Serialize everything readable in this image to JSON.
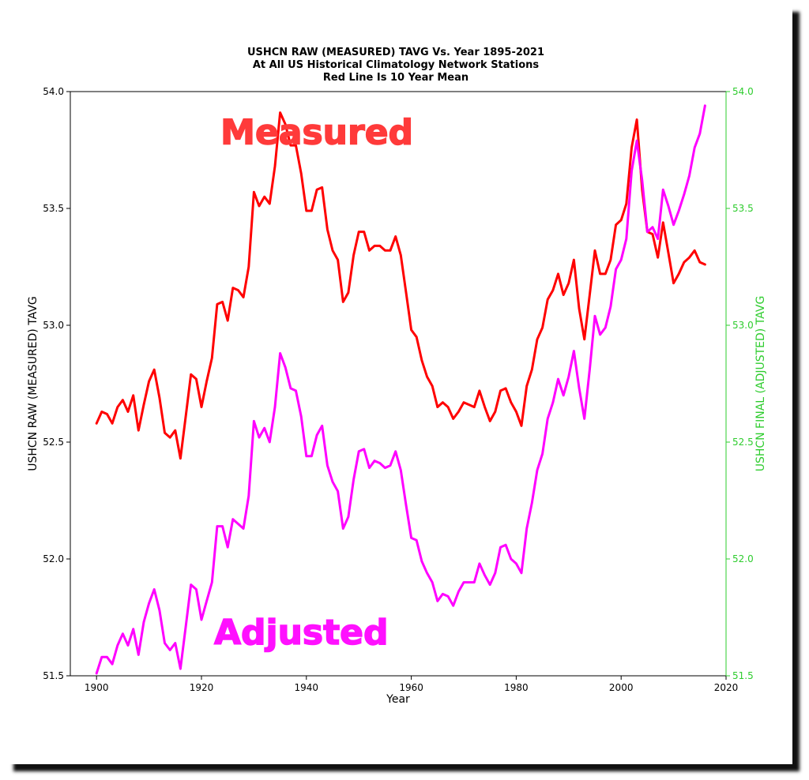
{
  "chart_data": {
    "type": "line",
    "title_lines": [
      "USHCN RAW (MEASURED) TAVG Vs. Year 1895-2021",
      "At All US Historical Climatology Network Stations",
      "Red Line Is 10 Year Mean"
    ],
    "xlabel": "Year",
    "ylabel_left": "USHCN RAW (MEASURED) TAVG",
    "ylabel_right": "USHCN FINAL (ADJUSTED) TAVG",
    "xlim": [
      1895,
      2020
    ],
    "ylim_left": [
      51.5,
      54.0
    ],
    "ylim_right": [
      51.5,
      54.0
    ],
    "x_ticks": [
      "1900",
      "1920",
      "1940",
      "1960",
      "1980",
      "2000",
      "2020"
    ],
    "y_ticks_left": [
      "51.5",
      "52.0",
      "52.5",
      "53.0",
      "53.5",
      "54.0"
    ],
    "y_ticks_right": [
      "51.5",
      "52.0",
      "52.5",
      "53.0",
      "53.5",
      "54.0"
    ],
    "grid": false,
    "annotations": [
      {
        "text": "Measured",
        "color": "#ff3a3a",
        "near_year": 1942,
        "near_value": 53.83
      },
      {
        "text": "Adjusted",
        "color": "#ff10ff",
        "near_year": 1939,
        "near_value": 51.69
      }
    ],
    "colors": {
      "measured": "#ff0000",
      "adjusted": "#ff00ff",
      "right_axis": "#2ecc2e",
      "text": "#000000"
    },
    "series": [
      {
        "name": "Measured",
        "axis": "left",
        "x": [
          1900,
          1901,
          1902,
          1903,
          1904,
          1905,
          1906,
          1907,
          1908,
          1909,
          1910,
          1911,
          1912,
          1913,
          1914,
          1915,
          1916,
          1917,
          1918,
          1919,
          1920,
          1921,
          1922,
          1923,
          1924,
          1925,
          1926,
          1927,
          1928,
          1929,
          1930,
          1931,
          1932,
          1933,
          1934,
          1935,
          1936,
          1937,
          1938,
          1939,
          1940,
          1941,
          1942,
          1943,
          1944,
          1945,
          1946,
          1947,
          1948,
          1949,
          1950,
          1951,
          1952,
          1953,
          1954,
          1955,
          1956,
          1957,
          1958,
          1959,
          1960,
          1961,
          1962,
          1963,
          1964,
          1965,
          1966,
          1967,
          1968,
          1969,
          1970,
          1971,
          1972,
          1973,
          1974,
          1975,
          1976,
          1977,
          1978,
          1979,
          1980,
          1981,
          1982,
          1983,
          1984,
          1985,
          1986,
          1987,
          1988,
          1989,
          1990,
          1991,
          1992,
          1993,
          1994,
          1995,
          1996,
          1997,
          1998,
          1999,
          2000,
          2001,
          2002,
          2003,
          2004,
          2005,
          2006,
          2007,
          2008,
          2009,
          2010,
          2011,
          2012,
          2013,
          2014,
          2015,
          2016
        ],
        "values": [
          52.58,
          52.63,
          52.62,
          52.58,
          52.65,
          52.68,
          52.63,
          52.7,
          52.55,
          52.66,
          52.76,
          52.81,
          52.69,
          52.54,
          52.52,
          52.55,
          52.43,
          52.61,
          52.79,
          52.77,
          52.65,
          52.76,
          52.86,
          53.09,
          53.1,
          53.02,
          53.16,
          53.15,
          53.12,
          53.25,
          53.57,
          53.51,
          53.55,
          53.52,
          53.68,
          53.91,
          53.86,
          53.77,
          53.77,
          53.65,
          53.49,
          53.49,
          53.58,
          53.59,
          53.41,
          53.32,
          53.28,
          53.1,
          53.14,
          53.3,
          53.4,
          53.4,
          53.32,
          53.34,
          53.34,
          53.32,
          53.32,
          53.38,
          53.3,
          53.14,
          52.98,
          52.95,
          52.85,
          52.78,
          52.74,
          52.65,
          52.67,
          52.65,
          52.6,
          52.63,
          52.67,
          52.66,
          52.65,
          52.72,
          52.65,
          52.59,
          52.63,
          52.72,
          52.73,
          52.67,
          52.63,
          52.57,
          52.74,
          52.81,
          52.94,
          52.99,
          53.11,
          53.15,
          53.22,
          53.13,
          53.18,
          53.28,
          53.07,
          52.94,
          53.13,
          53.32,
          53.22,
          53.22,
          53.28,
          53.43,
          53.45,
          53.52,
          53.76,
          53.88,
          53.58,
          53.4,
          53.39,
          53.29,
          53.44,
          53.31,
          53.18,
          53.22,
          53.27,
          53.29,
          53.32,
          53.27,
          53.26
        ]
      },
      {
        "name": "Adjusted",
        "axis": "right",
        "x": [
          1900,
          1901,
          1902,
          1903,
          1904,
          1905,
          1906,
          1907,
          1908,
          1909,
          1910,
          1911,
          1912,
          1913,
          1914,
          1915,
          1916,
          1917,
          1918,
          1919,
          1920,
          1921,
          1922,
          1923,
          1924,
          1925,
          1926,
          1927,
          1928,
          1929,
          1930,
          1931,
          1932,
          1933,
          1934,
          1935,
          1936,
          1937,
          1938,
          1939,
          1940,
          1941,
          1942,
          1943,
          1944,
          1945,
          1946,
          1947,
          1948,
          1949,
          1950,
          1951,
          1952,
          1953,
          1954,
          1955,
          1956,
          1957,
          1958,
          1959,
          1960,
          1961,
          1962,
          1963,
          1964,
          1965,
          1966,
          1967,
          1968,
          1969,
          1970,
          1971,
          1972,
          1973,
          1974,
          1975,
          1976,
          1977,
          1978,
          1979,
          1980,
          1981,
          1982,
          1983,
          1984,
          1985,
          1986,
          1987,
          1988,
          1989,
          1990,
          1991,
          1992,
          1993,
          1994,
          1995,
          1996,
          1997,
          1998,
          1999,
          2000,
          2001,
          2002,
          2003,
          2004,
          2005,
          2006,
          2007,
          2008,
          2009,
          2010,
          2011,
          2012,
          2013,
          2014,
          2015,
          2016
        ],
        "values": [
          51.51,
          51.58,
          51.58,
          51.55,
          51.63,
          51.68,
          51.63,
          51.7,
          51.59,
          51.73,
          51.81,
          51.87,
          51.78,
          51.64,
          51.61,
          51.64,
          51.53,
          51.71,
          51.89,
          51.87,
          51.74,
          51.82,
          51.9,
          52.14,
          52.14,
          52.05,
          52.17,
          52.15,
          52.13,
          52.27,
          52.59,
          52.52,
          52.56,
          52.5,
          52.65,
          52.88,
          52.82,
          52.73,
          52.72,
          52.61,
          52.44,
          52.44,
          52.53,
          52.57,
          52.4,
          52.33,
          52.29,
          52.13,
          52.18,
          52.34,
          52.46,
          52.47,
          52.39,
          52.42,
          52.41,
          52.39,
          52.4,
          52.46,
          52.38,
          52.23,
          52.09,
          52.08,
          51.99,
          51.94,
          51.9,
          51.82,
          51.85,
          51.84,
          51.8,
          51.86,
          51.9,
          51.9,
          51.9,
          51.98,
          51.93,
          51.89,
          51.94,
          52.05,
          52.06,
          52.0,
          51.98,
          51.94,
          52.13,
          52.24,
          52.38,
          52.45,
          52.6,
          52.67,
          52.77,
          52.7,
          52.78,
          52.89,
          52.73,
          52.6,
          52.81,
          53.04,
          52.96,
          52.99,
          53.08,
          53.24,
          53.28,
          53.37,
          53.66,
          53.79,
          53.62,
          53.4,
          53.42,
          53.37,
          53.58,
          53.51,
          53.43,
          53.49,
          53.56,
          53.64,
          53.76,
          53.82,
          53.94
        ]
      }
    ]
  }
}
